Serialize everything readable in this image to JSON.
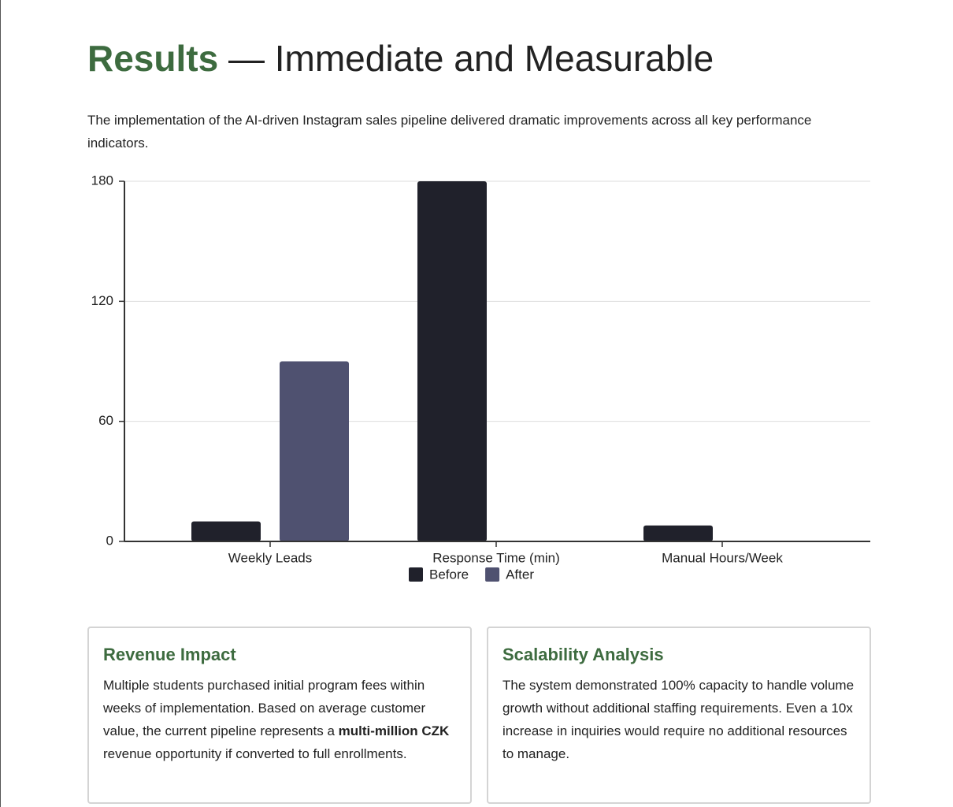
{
  "header": {
    "title_strong": "Results",
    "title_rest": "— Immediate and Measurable"
  },
  "intro": "The implementation of the AI-driven Instagram sales pipeline delivered dramatic improvements across all key performance indicators.",
  "chart_data": {
    "type": "bar",
    "categories": [
      "Weekly Leads",
      "Response Time (min)",
      "Manual Hours/Week"
    ],
    "series": [
      {
        "name": "Before",
        "color": "#20212b",
        "values": [
          10,
          180,
          8
        ]
      },
      {
        "name": "After",
        "color": "#4f5170",
        "values": [
          90,
          0,
          0
        ]
      }
    ],
    "ylim": [
      0,
      180
    ],
    "yticks": [
      0,
      60,
      120,
      180
    ],
    "grid": true,
    "legend": "bottom"
  },
  "cards": [
    {
      "title": "Revenue Impact",
      "body": [
        "Multiple students purchased initial program fees within weeks of implementation. Based on average customer value, the current pipeline represents a ",
        "multi-million CZK",
        " revenue opportunity if converted to full enrollments."
      ]
    },
    {
      "title": "Scalability Analysis",
      "body": [
        "The system demonstrated 100% capacity to handle volume growth without additional staffing requirements. Even a 10x increase in inquiries would require no additional resources to manage."
      ]
    }
  ]
}
